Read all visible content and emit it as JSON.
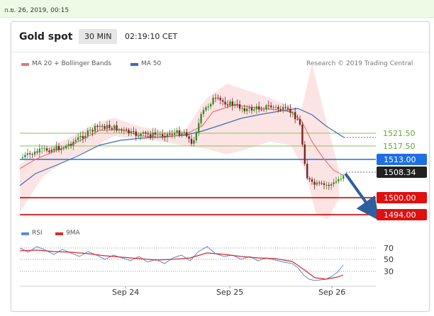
{
  "datetime": "ก.ย. 26, 2019, 00:15",
  "header": {
    "title": "Gold spot",
    "timeframe": "30 MIN",
    "time": "02:19:10 CET"
  },
  "legend": {
    "ma20": "MA 20 + Bollinger Bands",
    "ma50": "MA 50",
    "credit": "Research © 2019 Trading Central",
    "ma20_color": "#e87575",
    "ma50_color": "#3a6db5"
  },
  "levels": [
    {
      "value": "1521.50",
      "kind": "resistance-minor"
    },
    {
      "value": "1517.50",
      "kind": "resistance-minor"
    },
    {
      "value": "1513.00",
      "kind": "pivot"
    },
    {
      "value": "1508.34",
      "kind": "last"
    },
    {
      "value": "1500.00",
      "kind": "support"
    },
    {
      "value": "1494.00",
      "kind": "support"
    }
  ],
  "rsi_legend": {
    "rsi": "RSI",
    "ma9": "9MA",
    "rsi_color": "#5b8ad6",
    "ma9_color": "#d62b2b"
  },
  "rsi_levels": [
    "70",
    "50",
    "30"
  ],
  "x_axis": [
    "Sep 24",
    "Sep 25",
    "Sep 26"
  ],
  "colors": {
    "pivot": "#1f6fe0",
    "support": "#e01010",
    "minor": "#8cc257",
    "last": "#222222",
    "arrow": "#2d5f9e"
  }
}
